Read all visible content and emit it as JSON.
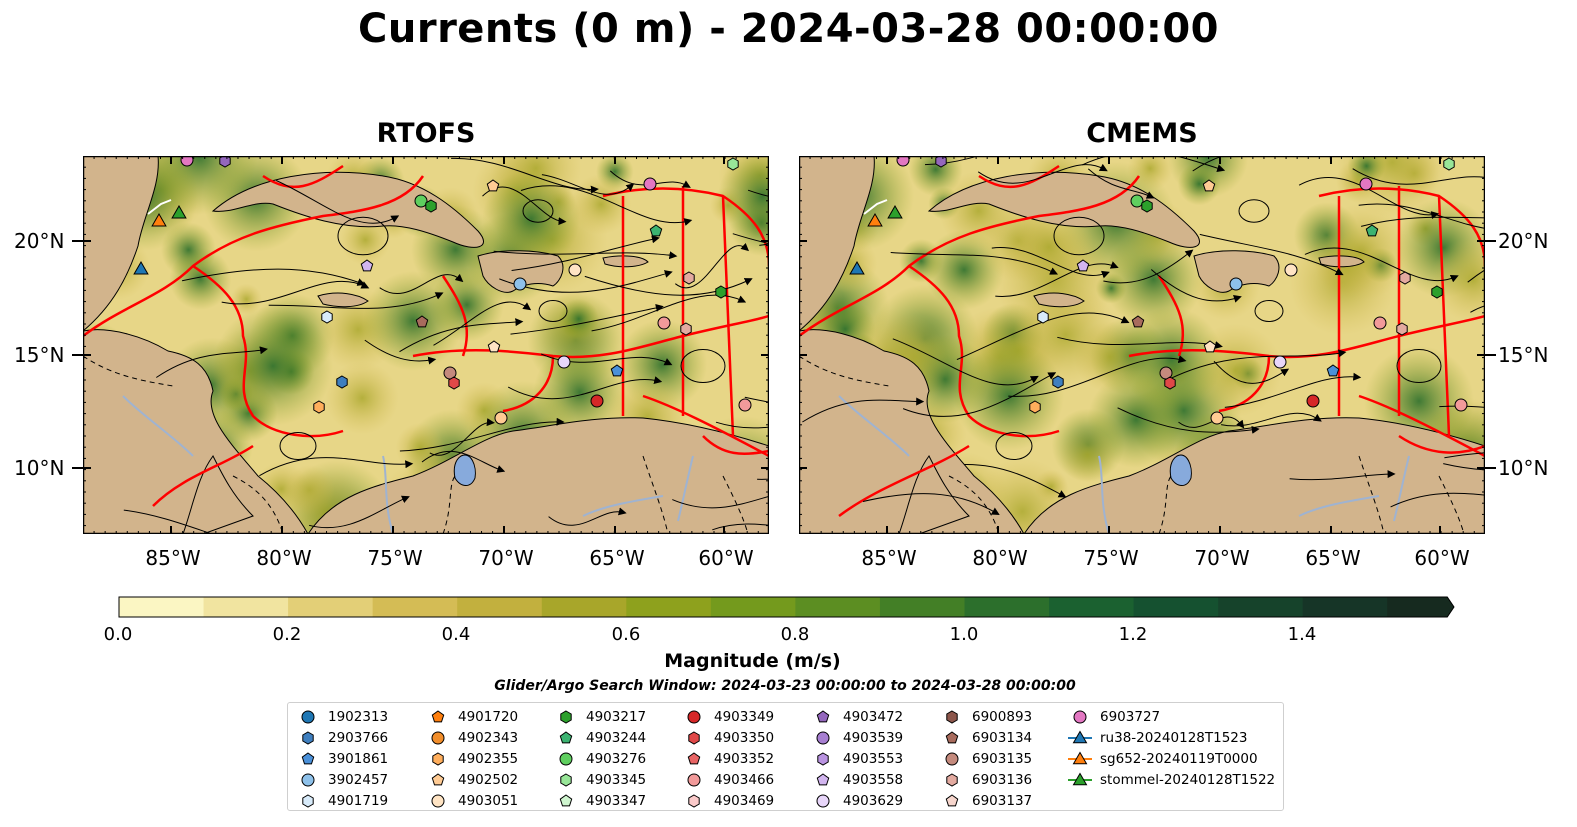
{
  "title": "Currents (0 m) - 2024-03-28 00:00:00",
  "panels": [
    {
      "title": "RTOFS"
    },
    {
      "title": "CMEMS"
    }
  ],
  "axes": {
    "lat_labels": [
      "20°N",
      "15°N",
      "10°N"
    ],
    "lon_labels": [
      "85°W",
      "80°W",
      "75°W",
      "70°W",
      "65°W",
      "60°W"
    ]
  },
  "colorbar": {
    "label": "Magnitude (m/s)",
    "ticks": [
      "0.0",
      "0.2",
      "0.4",
      "0.6",
      "0.8",
      "1.0",
      "1.2",
      "1.4"
    ],
    "range": [
      0,
      1.6
    ],
    "extend": "max",
    "colors": [
      "#fbf6c3",
      "#f1e4a0",
      "#e3cf77",
      "#d4bc55",
      "#c2b03e",
      "#a8a62a",
      "#8ea11d",
      "#749a1d",
      "#5c8e22",
      "#437f26",
      "#2c6f2c",
      "#1b6130",
      "#155130",
      "#16432b",
      "#163527",
      "#162a1f"
    ]
  },
  "search_window": "Glider/Argo Search Window: 2024-03-23 00:00:00 to 2024-03-28 00:00:00",
  "colors": {
    "land": "#d2b48c",
    "lake": "#87aadc",
    "eez_lines": "#ff0000",
    "streamlines": "#000000"
  },
  "legend": [
    [
      {
        "label": "1902313",
        "marker": "circle",
        "color": "#1f77b4"
      },
      {
        "label": "2903766",
        "marker": "hexagon",
        "color": "#3f7fbf"
      },
      {
        "label": "3901861",
        "marker": "pentagon",
        "color": "#4a90d9"
      },
      {
        "label": "3902457",
        "marker": "circle",
        "color": "#8ec1ea"
      },
      {
        "label": "4901719",
        "marker": "hexagon",
        "color": "#d8ebfa"
      }
    ],
    [
      {
        "label": "4901720",
        "marker": "pentagon",
        "color": "#ff7f0e"
      },
      {
        "label": "4902343",
        "marker": "circle",
        "color": "#f28e2b"
      },
      {
        "label": "4902355",
        "marker": "hexagon",
        "color": "#ffae5c"
      },
      {
        "label": "4902502",
        "marker": "pentagon",
        "color": "#ffcb94"
      },
      {
        "label": "4903051",
        "marker": "circle",
        "color": "#ffe4c4"
      }
    ],
    [
      {
        "label": "4903217",
        "marker": "hexagon",
        "color": "#2ca02c"
      },
      {
        "label": "4903244",
        "marker": "pentagon",
        "color": "#3cb371"
      },
      {
        "label": "4903276",
        "marker": "circle",
        "color": "#5fcf5f"
      },
      {
        "label": "4903345",
        "marker": "hexagon",
        "color": "#98e698"
      },
      {
        "label": "4903347",
        "marker": "pentagon",
        "color": "#cff5cf"
      }
    ],
    [
      {
        "label": "4903349",
        "marker": "circle",
        "color": "#d62728"
      },
      {
        "label": "4903350",
        "marker": "hexagon",
        "color": "#e04848"
      },
      {
        "label": "4903352",
        "marker": "pentagon",
        "color": "#e86464"
      },
      {
        "label": "4903466",
        "marker": "circle",
        "color": "#f29a9a"
      },
      {
        "label": "4903469",
        "marker": "hexagon",
        "color": "#fbcaca"
      }
    ],
    [
      {
        "label": "4903472",
        "marker": "pentagon",
        "color": "#9467bd"
      },
      {
        "label": "4903539",
        "marker": "circle",
        "color": "#a77fd1"
      },
      {
        "label": "4903553",
        "marker": "hexagon",
        "color": "#b993e0"
      },
      {
        "label": "4903558",
        "marker": "pentagon",
        "color": "#d2b5ef"
      },
      {
        "label": "4903629",
        "marker": "circle",
        "color": "#e8d6fa"
      }
    ],
    [
      {
        "label": "6900893",
        "marker": "hexagon",
        "color": "#8c564b"
      },
      {
        "label": "6903134",
        "marker": "pentagon",
        "color": "#a86b5d"
      },
      {
        "label": "6903135",
        "marker": "circle",
        "color": "#c48a7d"
      },
      {
        "label": "6903136",
        "marker": "hexagon",
        "color": "#e3aaa0"
      },
      {
        "label": "6903137",
        "marker": "pentagon",
        "color": "#f7d6cd"
      }
    ],
    [
      {
        "label": "6903727",
        "marker": "circle",
        "color": "#e377c2"
      },
      {
        "label": "ru38-20240128T1523",
        "marker": "triangle-line",
        "color": "#1f77b4"
      },
      {
        "label": "sg652-20240119T0000",
        "marker": "triangle-line",
        "color": "#ff7f0e"
      },
      {
        "label": "stommel-20240128T1522",
        "marker": "triangle-line",
        "color": "#2ca02c"
      }
    ]
  ]
}
